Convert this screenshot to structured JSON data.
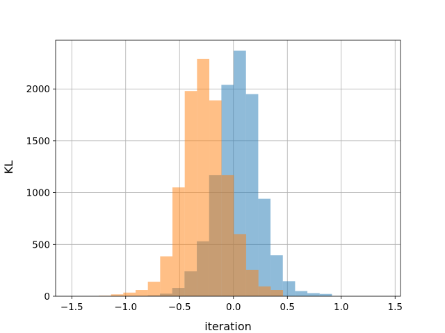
{
  "chart_data": {
    "type": "bar",
    "subtype": "overlapping-histogram",
    "title": "",
    "xlabel": "iteration",
    "ylabel": "KL",
    "xlim": [
      -1.65,
      1.55
    ],
    "ylim": [
      0,
      2470
    ],
    "xticks": [
      -1.5,
      -1.0,
      -0.5,
      0.0,
      0.5,
      1.0,
      1.5
    ],
    "xtick_labels": [
      "−1.5",
      "−1.0",
      "−0.5",
      "0.0",
      "0.5",
      "1.0",
      "1.5"
    ],
    "yticks": [
      0,
      500,
      1000,
      1500,
      2000
    ],
    "ytick_labels": [
      "0",
      "500",
      "1000",
      "1500",
      "2000"
    ],
    "grid": true,
    "legend": "none",
    "series": [
      {
        "color": "#1f77b4",
        "opacity": 0.5,
        "bin_width": 0.114,
        "bin_starts": [
          -0.91,
          -0.796,
          -0.682,
          -0.568,
          -0.454,
          -0.34,
          -0.226,
          -0.112,
          0.002,
          0.116,
          0.23,
          0.344,
          0.458,
          0.572,
          0.686,
          0.8
        ],
        "values": [
          3,
          8,
          25,
          80,
          240,
          530,
          1170,
          2040,
          2370,
          1950,
          940,
          395,
          145,
          50,
          30,
          22
        ]
      },
      {
        "color": "#ff7f0e",
        "opacity": 0.5,
        "bin_width": 0.114,
        "bin_starts": [
          -1.25,
          -1.136,
          -1.022,
          -0.908,
          -0.794,
          -0.68,
          -0.566,
          -0.452,
          -0.338,
          -0.224,
          -0.11,
          0.004,
          0.118,
          0.232,
          0.346
        ],
        "values": [
          5,
          18,
          35,
          60,
          140,
          385,
          1050,
          1980,
          2290,
          1890,
          1170,
          600,
          255,
          95,
          60
        ]
      }
    ]
  }
}
